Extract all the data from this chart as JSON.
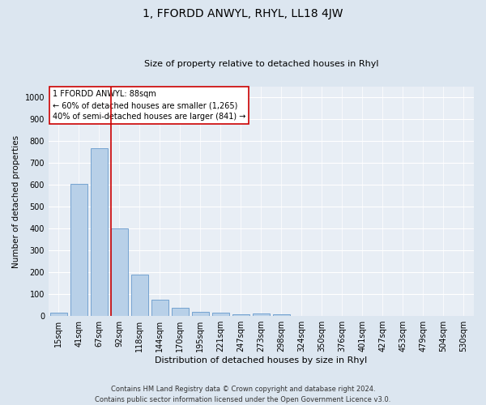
{
  "title": "1, FFORDD ANWYL, RHYL, LL18 4JW",
  "subtitle": "Size of property relative to detached houses in Rhyl",
  "xlabel": "Distribution of detached houses by size in Rhyl",
  "ylabel": "Number of detached properties",
  "bar_color": "#b8d0e8",
  "bar_edge_color": "#6699cc",
  "background_color": "#dce6f0",
  "plot_bg_color": "#e8eef5",
  "grid_color": "#ffffff",
  "categories": [
    "15sqm",
    "41sqm",
    "67sqm",
    "92sqm",
    "118sqm",
    "144sqm",
    "170sqm",
    "195sqm",
    "221sqm",
    "247sqm",
    "273sqm",
    "298sqm",
    "324sqm",
    "350sqm",
    "376sqm",
    "401sqm",
    "427sqm",
    "453sqm",
    "479sqm",
    "504sqm",
    "530sqm"
  ],
  "values": [
    15,
    605,
    770,
    400,
    190,
    75,
    38,
    18,
    15,
    10,
    12,
    8,
    0,
    0,
    0,
    0,
    0,
    0,
    0,
    0,
    0
  ],
  "ylim": [
    0,
    1050
  ],
  "yticks": [
    0,
    100,
    200,
    300,
    400,
    500,
    600,
    700,
    800,
    900,
    1000
  ],
  "property_line_index": 2.6,
  "annotation_text": "1 FFORDD ANWYL: 88sqm\n← 60% of detached houses are smaller (1,265)\n40% of semi-detached houses are larger (841) →",
  "footer_text": "Contains HM Land Registry data © Crown copyright and database right 2024.\nContains public sector information licensed under the Open Government Licence v3.0.",
  "red_line_color": "#cc0000",
  "annotation_box_edge": "#cc0000",
  "title_fontsize": 10,
  "subtitle_fontsize": 8,
  "ylabel_fontsize": 7.5,
  "xlabel_fontsize": 8,
  "tick_fontsize": 7,
  "annotation_fontsize": 7,
  "footer_fontsize": 6
}
